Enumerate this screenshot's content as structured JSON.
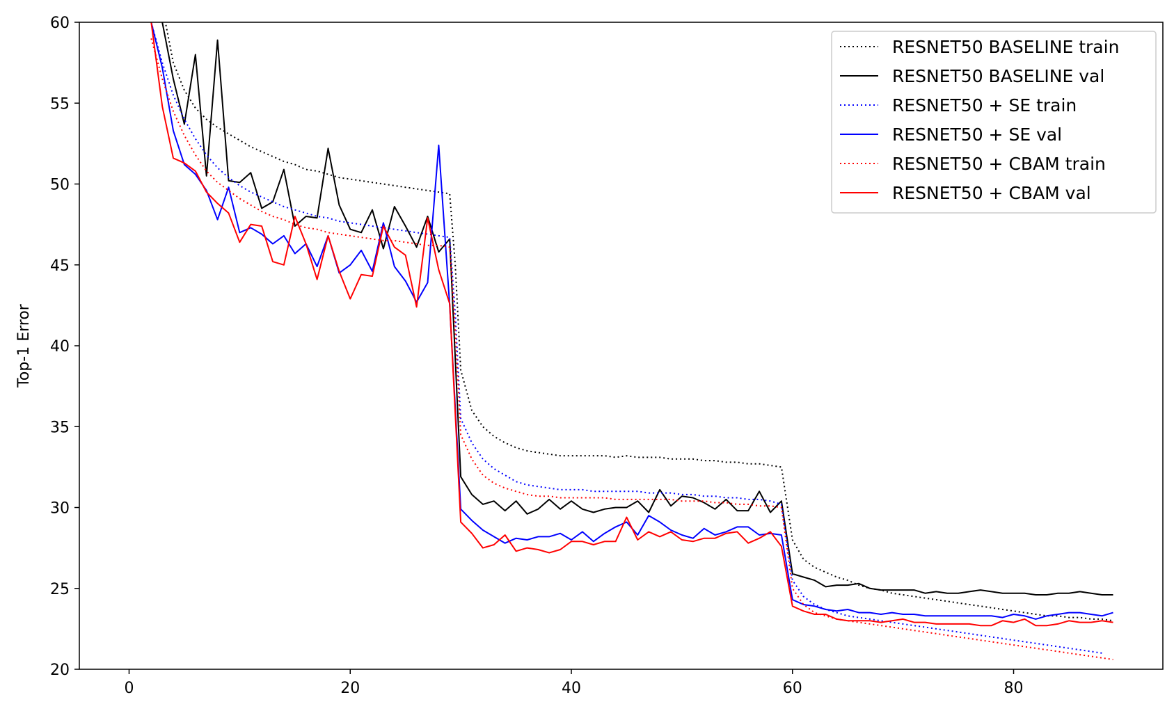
{
  "chart_data": {
    "type": "line",
    "title": "",
    "xlabel": "",
    "ylabel": "Top-1 Error",
    "xlim": [
      -4.5,
      93.5
    ],
    "ylim": [
      20,
      60
    ],
    "xticks": [
      0,
      20,
      40,
      60,
      80
    ],
    "yticks": [
      20,
      25,
      30,
      35,
      40,
      45,
      50,
      55,
      60
    ],
    "grid": false,
    "legend_position": "top-right",
    "series": [
      {
        "name": "RESNET50 BASELINE train",
        "color": "#000000",
        "style": "dotted",
        "x": [
          2,
          3,
          4,
          5,
          6,
          7,
          8,
          9,
          10,
          11,
          12,
          13,
          14,
          15,
          16,
          17,
          18,
          19,
          20,
          21,
          22,
          23,
          24,
          25,
          26,
          27,
          28,
          29,
          29.5,
          30,
          31,
          32,
          33,
          34,
          35,
          36,
          37,
          38,
          39,
          40,
          41,
          42,
          43,
          44,
          45,
          46,
          47,
          48,
          49,
          50,
          51,
          52,
          53,
          54,
          55,
          56,
          57,
          58,
          59,
          60,
          61,
          62,
          63,
          64,
          65,
          66,
          67,
          68,
          69,
          70,
          71,
          72,
          73,
          74,
          75,
          76,
          77,
          78,
          79,
          80,
          81,
          82,
          83,
          84,
          85,
          86,
          87,
          88,
          89
        ],
        "y": [
          67,
          61,
          57.5,
          55.8,
          54.7,
          54.0,
          53.5,
          53.1,
          52.7,
          52.3,
          52.0,
          51.7,
          51.4,
          51.2,
          50.9,
          50.8,
          50.6,
          50.4,
          50.3,
          50.2,
          50.1,
          50.0,
          49.9,
          49.8,
          49.7,
          49.6,
          49.5,
          49.4,
          45,
          38.5,
          36.0,
          35.0,
          34.4,
          34.0,
          33.7,
          33.5,
          33.4,
          33.3,
          33.2,
          33.2,
          33.2,
          33.2,
          33.2,
          33.1,
          33.2,
          33.1,
          33.1,
          33.1,
          33.0,
          33.0,
          33.0,
          32.9,
          32.9,
          32.8,
          32.8,
          32.7,
          32.7,
          32.6,
          32.5,
          28.0,
          26.8,
          26.3,
          26.0,
          25.7,
          25.5,
          25.2,
          25.0,
          24.9,
          24.7,
          24.6,
          24.5,
          24.4,
          24.3,
          24.2,
          24.1,
          24.0,
          23.9,
          23.8,
          23.7,
          23.6,
          23.5,
          23.4,
          23.3,
          23.3,
          23.2,
          23.2,
          23.1,
          23.1,
          23.0
        ]
      },
      {
        "name": "RESNET50 BASELINE val",
        "color": "#000000",
        "style": "solid",
        "x": [
          2,
          3,
          4,
          5,
          6,
          7,
          8,
          9,
          10,
          11,
          12,
          13,
          14,
          15,
          16,
          17,
          18,
          19,
          20,
          21,
          22,
          23,
          24,
          25,
          26,
          27,
          28,
          29,
          30,
          31,
          32,
          33,
          34,
          35,
          36,
          37,
          38,
          39,
          40,
          41,
          42,
          43,
          44,
          45,
          46,
          47,
          48,
          49,
          50,
          51,
          52,
          53,
          54,
          55,
          56,
          57,
          58,
          59,
          60,
          61,
          62,
          63,
          64,
          65,
          66,
          67,
          68,
          69,
          70,
          71,
          72,
          73,
          74,
          75,
          76,
          77,
          78,
          79,
          80,
          81,
          82,
          83,
          84,
          85,
          86,
          87,
          88,
          89
        ],
        "y": [
          64,
          60,
          56.5,
          53.7,
          58.0,
          50.5,
          58.9,
          50.2,
          50.1,
          50.7,
          48.5,
          48.9,
          50.9,
          47.4,
          48.0,
          47.9,
          52.2,
          48.7,
          47.2,
          47.0,
          48.4,
          46.0,
          48.6,
          47.4,
          46.1,
          48.0,
          45.8,
          46.6,
          31.9,
          30.8,
          30.2,
          30.4,
          29.8,
          30.4,
          29.6,
          29.9,
          30.5,
          29.9,
          30.4,
          29.9,
          29.7,
          29.9,
          30.0,
          30.0,
          30.4,
          29.7,
          31.1,
          30.1,
          30.7,
          30.6,
          30.3,
          29.9,
          30.5,
          29.8,
          29.8,
          31.0,
          29.7,
          30.4,
          25.9,
          25.7,
          25.5,
          25.1,
          25.2,
          25.2,
          25.3,
          25.0,
          24.9,
          24.9,
          24.9,
          24.9,
          24.7,
          24.8,
          24.7,
          24.7,
          24.8,
          24.9,
          24.8,
          24.7,
          24.7,
          24.7,
          24.6,
          24.6,
          24.7,
          24.7,
          24.8,
          24.7,
          24.6,
          24.6
        ]
      },
      {
        "name": "RESNET50 + SE train",
        "color": "#0000ff",
        "style": "dotted",
        "x": [
          2,
          3,
          4,
          5,
          6,
          7,
          8,
          9,
          10,
          11,
          12,
          13,
          14,
          15,
          16,
          17,
          18,
          19,
          20,
          21,
          22,
          23,
          24,
          25,
          26,
          27,
          28,
          29,
          29.5,
          30,
          31,
          32,
          33,
          34,
          35,
          36,
          37,
          38,
          39,
          40,
          41,
          42,
          43,
          44,
          45,
          46,
          47,
          48,
          49,
          50,
          51,
          52,
          53,
          54,
          55,
          56,
          57,
          58,
          59,
          60,
          61,
          62,
          63,
          64,
          65,
          66,
          67,
          68,
          69,
          70,
          71,
          72,
          73,
          74,
          75,
          76,
          77,
          78,
          79,
          80,
          81,
          82,
          83,
          84,
          85,
          86,
          87,
          88
        ],
        "y": [
          60,
          57.5,
          55.5,
          54.0,
          52.8,
          51.8,
          51.0,
          50.4,
          49.9,
          49.5,
          49.2,
          48.9,
          48.6,
          48.4,
          48.2,
          48.0,
          47.9,
          47.7,
          47.6,
          47.5,
          47.4,
          47.3,
          47.2,
          47.1,
          47.0,
          46.9,
          46.8,
          46.7,
          42,
          35.5,
          34.0,
          33.0,
          32.4,
          32.0,
          31.6,
          31.4,
          31.3,
          31.2,
          31.1,
          31.1,
          31.1,
          31.0,
          31.0,
          31.0,
          31.0,
          31.0,
          30.9,
          30.9,
          30.9,
          30.8,
          30.8,
          30.7,
          30.7,
          30.6,
          30.6,
          30.5,
          30.5,
          30.4,
          30.2,
          25.5,
          24.5,
          24.0,
          23.7,
          23.5,
          23.3,
          23.2,
          23.1,
          23.0,
          22.9,
          22.8,
          22.7,
          22.6,
          22.5,
          22.4,
          22.3,
          22.2,
          22.1,
          22.0,
          21.9,
          21.8,
          21.7,
          21.6,
          21.5,
          21.4,
          21.3,
          21.2,
          21.1,
          21.0
        ]
      },
      {
        "name": "RESNET50 + SE val",
        "color": "#0000ff",
        "style": "solid",
        "x": [
          2,
          3,
          4,
          5,
          6,
          7,
          8,
          9,
          10,
          11,
          12,
          13,
          14,
          15,
          16,
          17,
          18,
          19,
          20,
          21,
          22,
          23,
          24,
          25,
          26,
          27,
          28,
          29,
          30,
          31,
          32,
          33,
          34,
          35,
          36,
          37,
          38,
          39,
          40,
          41,
          42,
          43,
          44,
          45,
          46,
          47,
          48,
          49,
          50,
          51,
          52,
          53,
          54,
          55,
          56,
          57,
          58,
          59,
          60,
          61,
          62,
          63,
          64,
          65,
          66,
          67,
          68,
          69,
          70,
          71,
          72,
          73,
          74,
          75,
          76,
          77,
          78,
          79,
          80,
          81,
          82,
          83,
          84,
          85,
          86,
          87,
          88,
          89
        ],
        "y": [
          60,
          57.2,
          53.3,
          51.2,
          50.6,
          49.6,
          47.8,
          49.8,
          47.0,
          47.3,
          46.9,
          46.3,
          46.8,
          45.7,
          46.3,
          44.9,
          46.8,
          44.5,
          45.0,
          45.9,
          44.6,
          47.6,
          44.9,
          44.0,
          42.7,
          43.9,
          52.4,
          42.5,
          29.9,
          29.2,
          28.6,
          28.2,
          27.8,
          28.1,
          28.0,
          28.2,
          28.2,
          28.4,
          28.0,
          28.5,
          27.9,
          28.4,
          28.8,
          29.1,
          28.3,
          29.5,
          29.1,
          28.6,
          28.3,
          28.1,
          28.7,
          28.3,
          28.5,
          28.8,
          28.8,
          28.3,
          28.4,
          28.3,
          24.3,
          24.0,
          23.9,
          23.7,
          23.6,
          23.7,
          23.5,
          23.5,
          23.4,
          23.5,
          23.4,
          23.4,
          23.3,
          23.3,
          23.3,
          23.3,
          23.3,
          23.3,
          23.3,
          23.2,
          23.4,
          23.3,
          23.1,
          23.3,
          23.4,
          23.5,
          23.5,
          23.4,
          23.3,
          23.5
        ]
      },
      {
        "name": "RESNET50 + CBAM train",
        "color": "#ff0000",
        "style": "dotted",
        "x": [
          2,
          3,
          4,
          5,
          6,
          7,
          8,
          9,
          10,
          11,
          12,
          13,
          14,
          15,
          16,
          17,
          18,
          19,
          20,
          21,
          22,
          23,
          24,
          25,
          26,
          27,
          28,
          29,
          29.5,
          30,
          31,
          32,
          33,
          34,
          35,
          36,
          37,
          38,
          39,
          40,
          41,
          42,
          43,
          44,
          45,
          46,
          47,
          48,
          49,
          50,
          51,
          52,
          53,
          54,
          55,
          56,
          57,
          58,
          59,
          60,
          61,
          62,
          63,
          64,
          65,
          66,
          67,
          68,
          69,
          70,
          71,
          72,
          73,
          74,
          75,
          76,
          77,
          78,
          79,
          80,
          81,
          82,
          83,
          84,
          85,
          86,
          87,
          88,
          89
        ],
        "y": [
          59,
          56.5,
          54.5,
          53.0,
          51.8,
          50.8,
          50.1,
          49.6,
          49.1,
          48.7,
          48.3,
          48.0,
          47.8,
          47.5,
          47.3,
          47.2,
          47.0,
          46.9,
          46.8,
          46.7,
          46.6,
          46.5,
          46.5,
          46.4,
          46.3,
          46.2,
          46.2,
          46.1,
          41,
          34.5,
          33.0,
          32.0,
          31.5,
          31.2,
          31.0,
          30.8,
          30.7,
          30.7,
          30.6,
          30.6,
          30.6,
          30.6,
          30.6,
          30.5,
          30.5,
          30.5,
          30.5,
          30.5,
          30.5,
          30.4,
          30.4,
          30.4,
          30.3,
          30.3,
          30.2,
          30.2,
          30.1,
          30.1,
          30.0,
          25.0,
          24.0,
          23.5,
          23.3,
          23.1,
          23.0,
          22.9,
          22.8,
          22.7,
          22.6,
          22.5,
          22.4,
          22.3,
          22.2,
          22.1,
          22.0,
          21.9,
          21.8,
          21.7,
          21.6,
          21.5,
          21.4,
          21.3,
          21.2,
          21.1,
          21.0,
          20.9,
          20.8,
          20.7,
          20.6
        ]
      },
      {
        "name": "RESNET50 + CBAM val",
        "color": "#ff0000",
        "style": "solid",
        "x": [
          2,
          3,
          4,
          5,
          6,
          7,
          8,
          9,
          10,
          11,
          12,
          13,
          14,
          15,
          16,
          17,
          18,
          19,
          20,
          21,
          22,
          23,
          24,
          25,
          26,
          27,
          28,
          29,
          30,
          31,
          32,
          33,
          34,
          35,
          36,
          37,
          38,
          39,
          40,
          41,
          42,
          43,
          44,
          45,
          46,
          47,
          48,
          49,
          50,
          51,
          52,
          53,
          54,
          55,
          56,
          57,
          58,
          59,
          60,
          61,
          62,
          63,
          64,
          65,
          66,
          67,
          68,
          69,
          70,
          71,
          72,
          73,
          74,
          75,
          76,
          77,
          78,
          79,
          80,
          81,
          82,
          83,
          84,
          85,
          86,
          87,
          88,
          89
        ],
        "y": [
          60,
          54.8,
          51.6,
          51.3,
          50.8,
          49.5,
          48.8,
          48.2,
          46.4,
          47.5,
          47.4,
          45.2,
          45.0,
          48.0,
          46.3,
          44.1,
          46.8,
          44.6,
          42.9,
          44.4,
          44.3,
          47.4,
          46.1,
          45.6,
          42.4,
          47.9,
          44.7,
          42.6,
          29.1,
          28.4,
          27.5,
          27.7,
          28.3,
          27.3,
          27.5,
          27.4,
          27.2,
          27.4,
          27.9,
          27.9,
          27.7,
          27.9,
          27.9,
          29.4,
          28.0,
          28.5,
          28.2,
          28.5,
          28.0,
          27.9,
          28.1,
          28.1,
          28.4,
          28.5,
          27.8,
          28.1,
          28.5,
          27.6,
          23.9,
          23.6,
          23.4,
          23.4,
          23.1,
          23.0,
          23.0,
          23.0,
          22.9,
          23.0,
          23.1,
          22.9,
          22.9,
          22.8,
          22.8,
          22.8,
          22.8,
          22.7,
          22.7,
          23.0,
          22.9,
          23.1,
          22.7,
          22.7,
          22.8,
          23.0,
          22.9,
          22.9,
          23.0,
          22.9
        ]
      }
    ]
  }
}
